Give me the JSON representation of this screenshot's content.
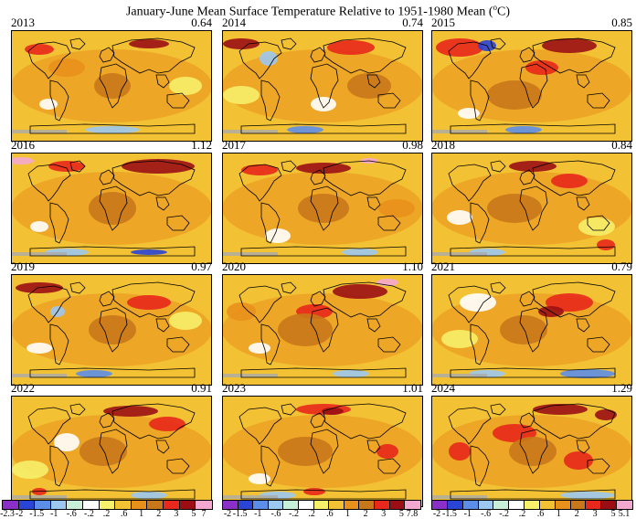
{
  "title": "January-June Mean Surface Temperature Relative to 1951-1980 Mean (°C)",
  "title_parts": {
    "before": "January-June Mean Surface Temperature Relative to 1951-1980 Mean (",
    "sup": "o",
    "after": "C)"
  },
  "panels": [
    {
      "year": "2013",
      "value": "0.64"
    },
    {
      "year": "2014",
      "value": "0.74"
    },
    {
      "year": "2015",
      "value": "0.85"
    },
    {
      "year": "2016",
      "value": "1.12"
    },
    {
      "year": "2017",
      "value": "0.98"
    },
    {
      "year": "2018",
      "value": "0.84"
    },
    {
      "year": "2019",
      "value": "0.97"
    },
    {
      "year": "2020",
      "value": "1.10"
    },
    {
      "year": "2021",
      "value": "0.79"
    },
    {
      "year": "2022",
      "value": "0.91"
    },
    {
      "year": "2023",
      "value": "1.01"
    },
    {
      "year": "2024",
      "value": "1.29"
    }
  ],
  "color_scale": [
    "#8b2fc9",
    "#2a44d6",
    "#5c8ee8",
    "#9cc8f0",
    "#c8f0d8",
    "#ffffff",
    "#f6f06a",
    "#f3c234",
    "#e8901c",
    "#c8781a",
    "#e8281c",
    "#9b0f14",
    "#f4a8d0"
  ],
  "legends": [
    {
      "ticks": [
        "-2.3",
        "-2",
        "-1.5",
        "-1",
        "-.6",
        "-.2",
        ".2",
        ".6",
        "1",
        "2",
        "3",
        "5",
        "7"
      ]
    },
    {
      "ticks": [
        "-2",
        "-1.5",
        "-1",
        "-.6",
        "-.2",
        ".2",
        ".6",
        "1",
        "2",
        "3",
        "5",
        "7.8"
      ]
    },
    {
      "ticks": [
        "-2",
        "-1.5",
        "-1",
        "-.6",
        "-.2",
        ".2",
        ".6",
        "1",
        "2",
        "3",
        "5",
        "5.1"
      ]
    }
  ]
}
